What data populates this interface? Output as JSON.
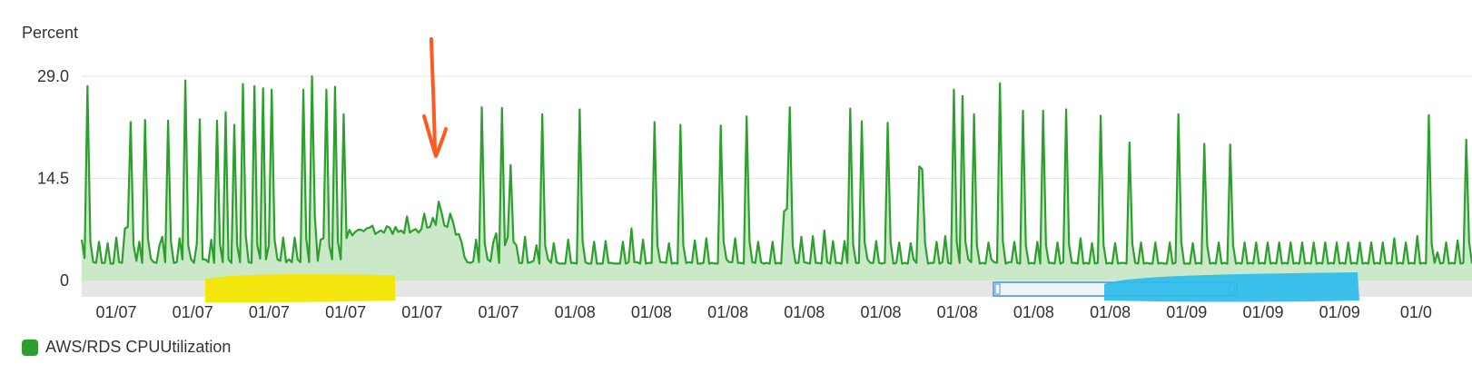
{
  "chart_data": {
    "type": "area",
    "ylabel": "Percent",
    "ylim": [
      0,
      29.0
    ],
    "yticks": [
      "29.0",
      "14.5",
      "0"
    ],
    "xticks": [
      "01/07",
      "01/07",
      "01/07",
      "01/07",
      "01/07",
      "01/07",
      "01/08",
      "01/08",
      "01/08",
      "01/08",
      "01/08",
      "01/08",
      "01/08",
      "01/08",
      "01/09",
      "01/09",
      "01/09",
      "01/0"
    ],
    "grid": true,
    "legend": "bottom-left",
    "series": [
      {
        "name": "AWS/RDS CPUUtilization",
        "color": "#2ca02c",
        "fill": "#cbe8c9",
        "values": [
          5.8,
          3.2,
          27.6,
          5.5,
          2.6,
          2.5,
          5.5,
          2.5,
          2.5,
          5.3,
          2.4,
          2.4,
          6.1,
          2.6,
          2.5,
          7.4,
          7.6,
          22.5,
          5.0,
          2.8,
          5.5,
          2.5,
          22.8,
          6.0,
          3.1,
          2.6,
          2.5,
          5.0,
          6.2,
          2.6,
          22.7,
          5.5,
          2.5,
          2.6,
          6.0,
          3.0,
          28.4,
          5.0,
          3.0,
          2.5,
          5.3,
          22.9,
          3.0,
          3.0,
          2.6,
          5.8,
          2.5,
          22.7,
          5.2,
          2.6,
          23.9,
          3.0,
          2.5,
          22.1,
          5.0,
          2.6,
          27.9,
          6.3,
          2.6,
          2.5,
          27.6,
          5.0,
          3.1,
          27.3,
          3.0,
          5.0,
          27.1,
          5.8,
          3.0,
          2.8,
          6.1,
          2.6,
          3.0,
          2.6,
          6.1,
          3.0,
          2.6,
          27.1,
          6.0,
          2.6,
          29.0,
          9.0,
          2.8,
          5.8,
          6.0,
          27.1,
          5.0,
          3.0,
          27.5,
          5.5,
          3.0,
          23.6,
          6.0,
          7.2,
          6.4,
          6.9,
          7.2,
          7.2,
          7.0,
          7.4,
          7.5,
          7.8,
          6.6,
          6.9,
          7.1,
          6.8,
          7.7,
          7.5,
          6.6,
          7.6,
          6.9,
          7.1,
          6.7,
          9.1,
          6.8,
          7.1,
          7.3,
          6.8,
          7.3,
          9.5,
          7.5,
          7.6,
          8.9,
          7.9,
          11.2,
          9.7,
          7.8,
          7.6,
          9.5,
          8.3,
          6.5,
          6.6,
          5.4,
          3.3,
          2.6,
          2.5,
          2.7,
          5.8,
          2.6,
          24.6,
          5.3,
          3.0,
          2.7,
          5.5,
          6.7,
          2.5,
          24.5,
          5.0,
          6.2,
          16.4,
          5.5,
          5.0,
          2.5,
          2.5,
          6.2,
          2.5,
          2.6,
          2.8,
          5.0,
          2.4,
          23.6,
          5.0,
          3.0,
          2.5,
          5.3,
          2.6,
          2.4,
          2.4,
          2.4,
          5.8,
          2.5,
          2.5,
          2.4,
          24.3,
          5.6,
          2.6,
          2.4,
          2.4,
          5.5,
          2.4,
          2.4,
          2.4,
          5.6,
          2.5,
          2.5,
          2.4,
          2.4,
          2.4,
          5.5,
          2.4,
          2.6,
          7.4,
          2.6,
          2.6,
          2.4,
          5.8,
          2.4,
          2.5,
          2.5,
          22.5,
          5.0,
          2.6,
          2.6,
          2.5,
          5.3,
          2.4,
          2.5,
          2.4,
          22.1,
          5.0,
          2.5,
          2.6,
          2.5,
          5.7,
          2.4,
          2.4,
          2.5,
          6.0,
          2.4,
          2.5,
          2.4,
          2.4,
          22.0,
          5.5,
          3.0,
          2.6,
          2.6,
          6.0,
          2.5,
          2.5,
          2.4,
          23.3,
          5.5,
          2.6,
          2.5,
          5.5,
          2.6,
          2.4,
          2.5,
          2.4,
          5.5,
          2.4,
          2.5,
          2.4,
          9.8,
          10.2,
          24.6,
          5.0,
          2.5,
          2.5,
          6.2,
          2.6,
          2.5,
          2.4,
          6.3,
          2.5,
          2.5,
          2.4,
          7.1,
          2.6,
          2.4,
          5.6,
          2.5,
          2.5,
          2.4,
          5.6,
          2.5,
          24.4,
          5.1,
          2.5,
          2.5,
          22.6,
          5.4,
          3.0,
          2.5,
          2.5,
          5.6,
          2.5,
          2.4,
          2.5,
          22.4,
          5.5,
          2.4,
          2.5,
          5.4,
          2.4,
          2.5,
          2.4,
          5.3,
          3.0,
          2.5,
          16.2,
          15.8,
          5.3,
          2.4,
          2.5,
          2.5,
          5.5,
          2.4,
          2.6,
          6.3,
          2.5,
          2.4,
          27.1,
          5.5,
          2.5,
          26.2,
          5.5,
          3.0,
          2.6,
          23.6,
          5.0,
          2.4,
          2.5,
          2.4,
          5.4,
          3.0,
          2.6,
          2.5,
          28.0,
          5.6,
          2.4,
          2.6,
          2.6,
          5.5,
          2.5,
          2.4,
          24.1,
          5.0,
          2.4,
          2.5,
          2.4,
          5.5,
          2.4,
          24.1,
          5.0,
          2.5,
          2.5,
          2.4,
          5.4,
          2.4,
          2.6,
          24.3,
          5.1,
          2.5,
          2.5,
          2.4,
          6.0,
          2.4,
          2.5,
          2.4,
          5.3,
          2.4,
          2.5,
          23.4,
          5.0,
          2.4,
          2.5,
          2.4,
          5.3,
          2.4,
          2.5,
          2.5,
          2.4,
          19.6,
          5.2,
          2.5,
          2.4,
          5.4,
          2.4,
          2.5,
          2.4,
          2.4,
          5.4,
          2.4,
          2.5,
          2.4,
          2.4,
          5.4,
          2.4,
          2.5,
          23.6,
          5.5,
          2.4,
          2.4,
          2.4,
          5.3,
          2.4,
          2.5,
          2.4,
          19.4,
          5.0,
          2.4,
          2.5,
          2.4,
          5.4,
          2.4,
          2.5,
          2.4,
          19.3,
          5.0,
          2.4,
          2.5,
          2.4,
          5.4,
          2.4,
          2.5,
          2.4,
          5.4,
          2.4,
          2.5,
          2.4,
          5.4,
          2.4,
          2.5,
          2.4,
          5.4,
          2.4,
          2.5,
          2.4,
          5.4,
          2.4,
          2.5,
          2.4,
          5.4,
          2.4,
          2.5,
          2.4,
          5.4,
          2.4,
          2.5,
          2.4,
          5.4,
          2.4,
          2.5,
          2.4,
          5.4,
          2.4,
          2.5,
          2.4,
          5.4,
          2.4,
          2.5,
          2.4,
          5.4,
          2.4,
          2.5,
          2.4,
          5.4,
          2.4,
          2.5,
          2.4,
          5.4,
          2.4,
          2.5,
          2.4,
          6.0,
          2.4,
          2.5,
          2.4,
          5.4,
          2.4,
          2.5,
          2.4,
          6.3,
          2.4,
          2.5,
          2.4,
          23.5,
          5.2,
          2.5,
          4.0,
          2.4,
          2.5,
          5.4,
          2.4,
          2.5,
          2.4,
          5.7,
          2.4,
          2.5,
          20.0,
          5.5,
          2.4
        ]
      }
    ]
  },
  "annotations": {
    "arrow_color": "#ff5a1f",
    "highlight_yellow": "#f3e600",
    "highlight_blue": "#2bbcea",
    "navigator_color": "#4a90d9"
  }
}
